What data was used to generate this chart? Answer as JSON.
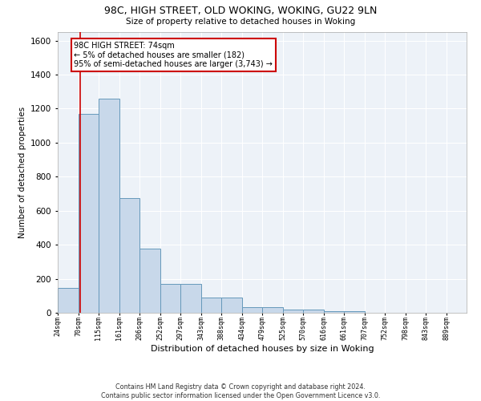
{
  "title1": "98C, HIGH STREET, OLD WOKING, WOKING, GU22 9LN",
  "title2": "Size of property relative to detached houses in Woking",
  "xlabel": "Distribution of detached houses by size in Woking",
  "ylabel": "Number of detached properties",
  "bar_color": "#c8d8ea",
  "bar_edge_color": "#6699bb",
  "bins": [
    24,
    70,
    115,
    161,
    206,
    252,
    297,
    343,
    388,
    434,
    479,
    525,
    570,
    616,
    661,
    707,
    752,
    798,
    843,
    889,
    934
  ],
  "values": [
    148,
    1170,
    1260,
    675,
    375,
    170,
    170,
    90,
    90,
    35,
    35,
    20,
    20,
    10,
    10,
    0,
    0,
    0,
    0,
    0
  ],
  "property_size": 74,
  "vline_color": "#cc0000",
  "annotation_text": "98C HIGH STREET: 74sqm\n← 5% of detached houses are smaller (182)\n95% of semi-detached houses are larger (3,743) →",
  "annotation_box_color": "#ffffff",
  "annotation_edge_color": "#cc0000",
  "footer1": "Contains HM Land Registry data © Crown copyright and database right 2024.",
  "footer2": "Contains public sector information licensed under the Open Government Licence v3.0.",
  "background_color": "#edf2f8",
  "ylim": [
    0,
    1650
  ],
  "xlim": [
    24,
    934
  ],
  "yticks": [
    0,
    200,
    400,
    600,
    800,
    1000,
    1200,
    1400,
    1600
  ]
}
